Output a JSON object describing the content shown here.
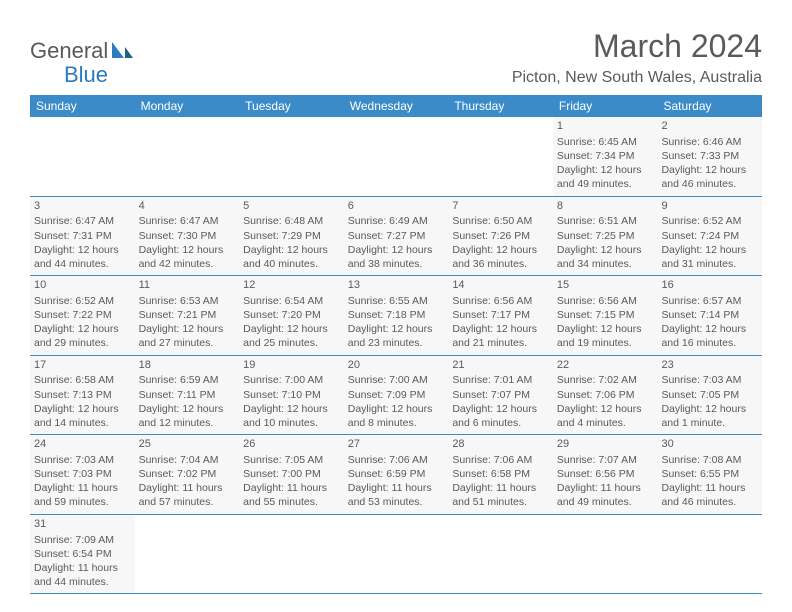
{
  "brand": {
    "name_part1": "General",
    "name_part2": "Blue"
  },
  "title": "March 2024",
  "location": "Picton, New South Wales, Australia",
  "colors": {
    "header_bg": "#3b8bc8",
    "header_text": "#ffffff",
    "cell_bg": "#f7f7f7",
    "text": "#5a5a5a",
    "row_border": "#3b8bc8"
  },
  "weekdays": [
    "Sunday",
    "Monday",
    "Tuesday",
    "Wednesday",
    "Thursday",
    "Friday",
    "Saturday"
  ],
  "weeks": [
    [
      null,
      null,
      null,
      null,
      null,
      {
        "day": "1",
        "sunrise": "Sunrise: 6:45 AM",
        "sunset": "Sunset: 7:34 PM",
        "daylight": "Daylight: 12 hours and 49 minutes."
      },
      {
        "day": "2",
        "sunrise": "Sunrise: 6:46 AM",
        "sunset": "Sunset: 7:33 PM",
        "daylight": "Daylight: 12 hours and 46 minutes."
      }
    ],
    [
      {
        "day": "3",
        "sunrise": "Sunrise: 6:47 AM",
        "sunset": "Sunset: 7:31 PM",
        "daylight": "Daylight: 12 hours and 44 minutes."
      },
      {
        "day": "4",
        "sunrise": "Sunrise: 6:47 AM",
        "sunset": "Sunset: 7:30 PM",
        "daylight": "Daylight: 12 hours and 42 minutes."
      },
      {
        "day": "5",
        "sunrise": "Sunrise: 6:48 AM",
        "sunset": "Sunset: 7:29 PM",
        "daylight": "Daylight: 12 hours and 40 minutes."
      },
      {
        "day": "6",
        "sunrise": "Sunrise: 6:49 AM",
        "sunset": "Sunset: 7:27 PM",
        "daylight": "Daylight: 12 hours and 38 minutes."
      },
      {
        "day": "7",
        "sunrise": "Sunrise: 6:50 AM",
        "sunset": "Sunset: 7:26 PM",
        "daylight": "Daylight: 12 hours and 36 minutes."
      },
      {
        "day": "8",
        "sunrise": "Sunrise: 6:51 AM",
        "sunset": "Sunset: 7:25 PM",
        "daylight": "Daylight: 12 hours and 34 minutes."
      },
      {
        "day": "9",
        "sunrise": "Sunrise: 6:52 AM",
        "sunset": "Sunset: 7:24 PM",
        "daylight": "Daylight: 12 hours and 31 minutes."
      }
    ],
    [
      {
        "day": "10",
        "sunrise": "Sunrise: 6:52 AM",
        "sunset": "Sunset: 7:22 PM",
        "daylight": "Daylight: 12 hours and 29 minutes."
      },
      {
        "day": "11",
        "sunrise": "Sunrise: 6:53 AM",
        "sunset": "Sunset: 7:21 PM",
        "daylight": "Daylight: 12 hours and 27 minutes."
      },
      {
        "day": "12",
        "sunrise": "Sunrise: 6:54 AM",
        "sunset": "Sunset: 7:20 PM",
        "daylight": "Daylight: 12 hours and 25 minutes."
      },
      {
        "day": "13",
        "sunrise": "Sunrise: 6:55 AM",
        "sunset": "Sunset: 7:18 PM",
        "daylight": "Daylight: 12 hours and 23 minutes."
      },
      {
        "day": "14",
        "sunrise": "Sunrise: 6:56 AM",
        "sunset": "Sunset: 7:17 PM",
        "daylight": "Daylight: 12 hours and 21 minutes."
      },
      {
        "day": "15",
        "sunrise": "Sunrise: 6:56 AM",
        "sunset": "Sunset: 7:15 PM",
        "daylight": "Daylight: 12 hours and 19 minutes."
      },
      {
        "day": "16",
        "sunrise": "Sunrise: 6:57 AM",
        "sunset": "Sunset: 7:14 PM",
        "daylight": "Daylight: 12 hours and 16 minutes."
      }
    ],
    [
      {
        "day": "17",
        "sunrise": "Sunrise: 6:58 AM",
        "sunset": "Sunset: 7:13 PM",
        "daylight": "Daylight: 12 hours and 14 minutes."
      },
      {
        "day": "18",
        "sunrise": "Sunrise: 6:59 AM",
        "sunset": "Sunset: 7:11 PM",
        "daylight": "Daylight: 12 hours and 12 minutes."
      },
      {
        "day": "19",
        "sunrise": "Sunrise: 7:00 AM",
        "sunset": "Sunset: 7:10 PM",
        "daylight": "Daylight: 12 hours and 10 minutes."
      },
      {
        "day": "20",
        "sunrise": "Sunrise: 7:00 AM",
        "sunset": "Sunset: 7:09 PM",
        "daylight": "Daylight: 12 hours and 8 minutes."
      },
      {
        "day": "21",
        "sunrise": "Sunrise: 7:01 AM",
        "sunset": "Sunset: 7:07 PM",
        "daylight": "Daylight: 12 hours and 6 minutes."
      },
      {
        "day": "22",
        "sunrise": "Sunrise: 7:02 AM",
        "sunset": "Sunset: 7:06 PM",
        "daylight": "Daylight: 12 hours and 4 minutes."
      },
      {
        "day": "23",
        "sunrise": "Sunrise: 7:03 AM",
        "sunset": "Sunset: 7:05 PM",
        "daylight": "Daylight: 12 hours and 1 minute."
      }
    ],
    [
      {
        "day": "24",
        "sunrise": "Sunrise: 7:03 AM",
        "sunset": "Sunset: 7:03 PM",
        "daylight": "Daylight: 11 hours and 59 minutes."
      },
      {
        "day": "25",
        "sunrise": "Sunrise: 7:04 AM",
        "sunset": "Sunset: 7:02 PM",
        "daylight": "Daylight: 11 hours and 57 minutes."
      },
      {
        "day": "26",
        "sunrise": "Sunrise: 7:05 AM",
        "sunset": "Sunset: 7:00 PM",
        "daylight": "Daylight: 11 hours and 55 minutes."
      },
      {
        "day": "27",
        "sunrise": "Sunrise: 7:06 AM",
        "sunset": "Sunset: 6:59 PM",
        "daylight": "Daylight: 11 hours and 53 minutes."
      },
      {
        "day": "28",
        "sunrise": "Sunrise: 7:06 AM",
        "sunset": "Sunset: 6:58 PM",
        "daylight": "Daylight: 11 hours and 51 minutes."
      },
      {
        "day": "29",
        "sunrise": "Sunrise: 7:07 AM",
        "sunset": "Sunset: 6:56 PM",
        "daylight": "Daylight: 11 hours and 49 minutes."
      },
      {
        "day": "30",
        "sunrise": "Sunrise: 7:08 AM",
        "sunset": "Sunset: 6:55 PM",
        "daylight": "Daylight: 11 hours and 46 minutes."
      }
    ],
    [
      {
        "day": "31",
        "sunrise": "Sunrise: 7:09 AM",
        "sunset": "Sunset: 6:54 PM",
        "daylight": "Daylight: 11 hours and 44 minutes."
      },
      null,
      null,
      null,
      null,
      null,
      null
    ]
  ]
}
